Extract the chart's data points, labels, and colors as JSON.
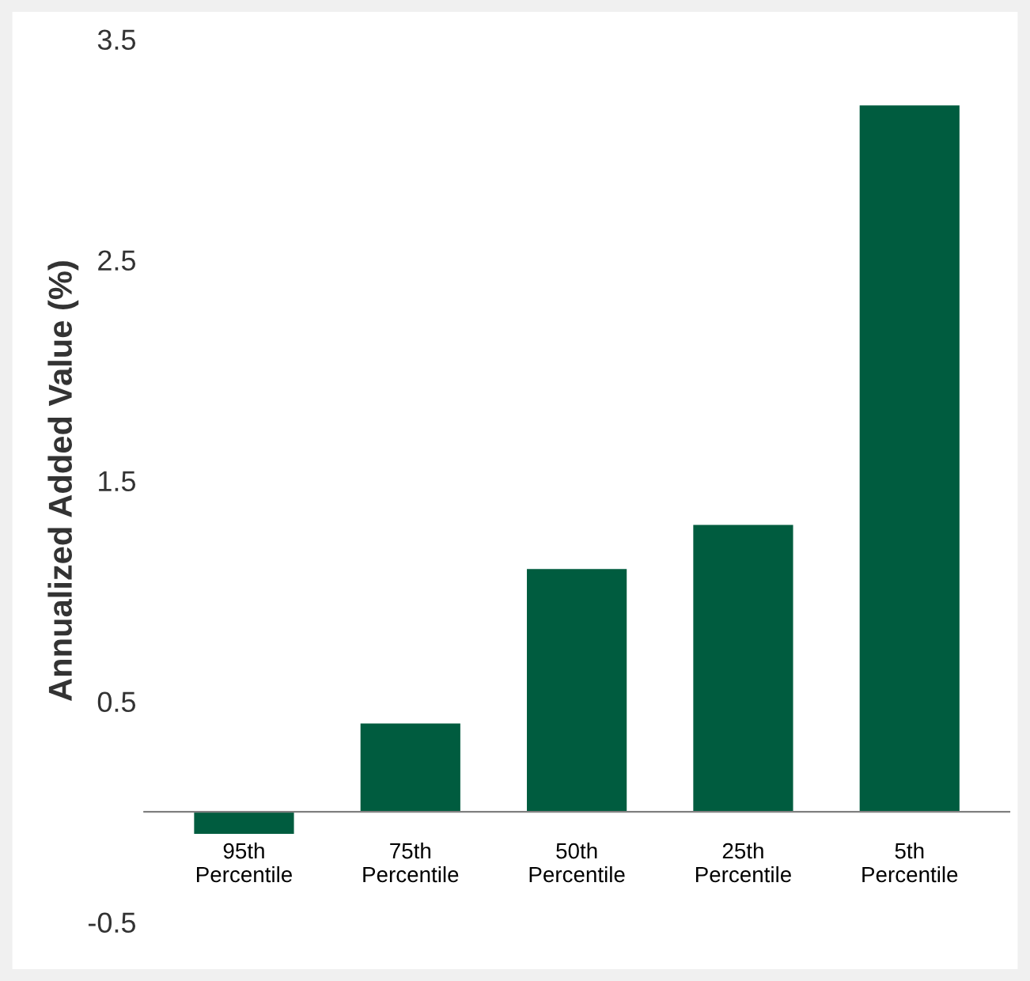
{
  "chart_data": {
    "type": "bar",
    "ylabel": "Annualized Added Value (%)",
    "categories": [
      "95th\nPercentile",
      "75th\nPercentile",
      "50th\nPercentile",
      "25th\nPercentile",
      "5th\nPercentile"
    ],
    "values": [
      -0.1,
      0.4,
      1.1,
      1.3,
      3.2
    ],
    "color": "#005c3f",
    "ylim": [
      -0.5,
      3.5
    ],
    "yticks": [
      -0.5,
      0.5,
      1.5,
      2.5,
      3.5
    ],
    "grid": false,
    "legend": false
  }
}
